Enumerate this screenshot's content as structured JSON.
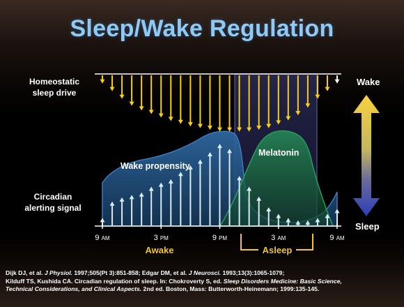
{
  "title": "Sleep/Wake Regulation",
  "labels": {
    "homeostatic_line1": "Homeostatic",
    "homeostatic_line2": "sleep drive",
    "circadian_line1": "Circadian",
    "circadian_line2": "alerting signal",
    "wake": "Wake",
    "sleep": "Sleep",
    "wake_propensity": "Wake propensity",
    "melatonin": "Melatonin",
    "awake": "Awake",
    "asleep": "Asleep"
  },
  "time_axis": [
    {
      "num": "9",
      "unit": "AM"
    },
    {
      "num": "3",
      "unit": "PM"
    },
    {
      "num": "9",
      "unit": "PM"
    },
    {
      "num": "3",
      "unit": "AM"
    },
    {
      "num": "9",
      "unit": "AM"
    }
  ],
  "homeostatic_drive_levels": [
    0.14,
    0.27,
    0.4,
    0.52,
    0.6,
    0.66,
    0.72,
    0.78,
    0.83,
    0.87,
    0.9,
    0.93,
    0.96,
    0.96,
    0.96,
    0.96,
    0.93,
    0.9,
    0.84,
    0.77,
    0.68,
    0.55,
    0.4,
    0.27,
    0.14
  ],
  "circadian_alerting_levels": [
    0.09,
    0.29,
    0.34,
    0.37,
    0.4,
    0.47,
    0.52,
    0.56,
    0.65,
    0.73,
    0.8,
    0.89,
    0.99,
    0.93,
    0.6,
    0.47,
    0.35,
    0.22,
    0.14,
    0.09,
    0.06,
    0.06,
    0.09,
    0.14,
    0.2
  ],
  "colors": {
    "title": "#8fcaf2",
    "drive_arrow": "#f6cf1c",
    "signal_arrow": "#d8ecf8",
    "wake_propensity_fill": "#2a5f93",
    "melatonin_fill": "#1f7a4c",
    "sleep_band": "#5a5a8e",
    "awake_asleep_text": "#f3c62b",
    "gradient_top": "#f7d23c",
    "gradient_bottom": "#2b3fb8"
  },
  "references": {
    "line1_a": "Dijk DJ, et al. ",
    "line1_b": "J Physiol.",
    "line1_c": " 1997;505(Pt 3):851-858;  Edgar DM, et al. ",
    "line1_d": "J Neurosci.",
    "line1_e": " 1993;13(3):1065-1079;",
    "line2_a": "Kilduff TS, Kushida CA. Circadian regulation of sleep. In: Chokroverty S, ed. ",
    "line2_b": "Sleep Disorders Medicine: Basic Science,",
    "line3_a": "Technical Considerations, and Clinical Aspects.",
    "line3_b": "  2nd ed. Boston, Mass: Butterworth-Heinemann;  1999:135-145."
  }
}
